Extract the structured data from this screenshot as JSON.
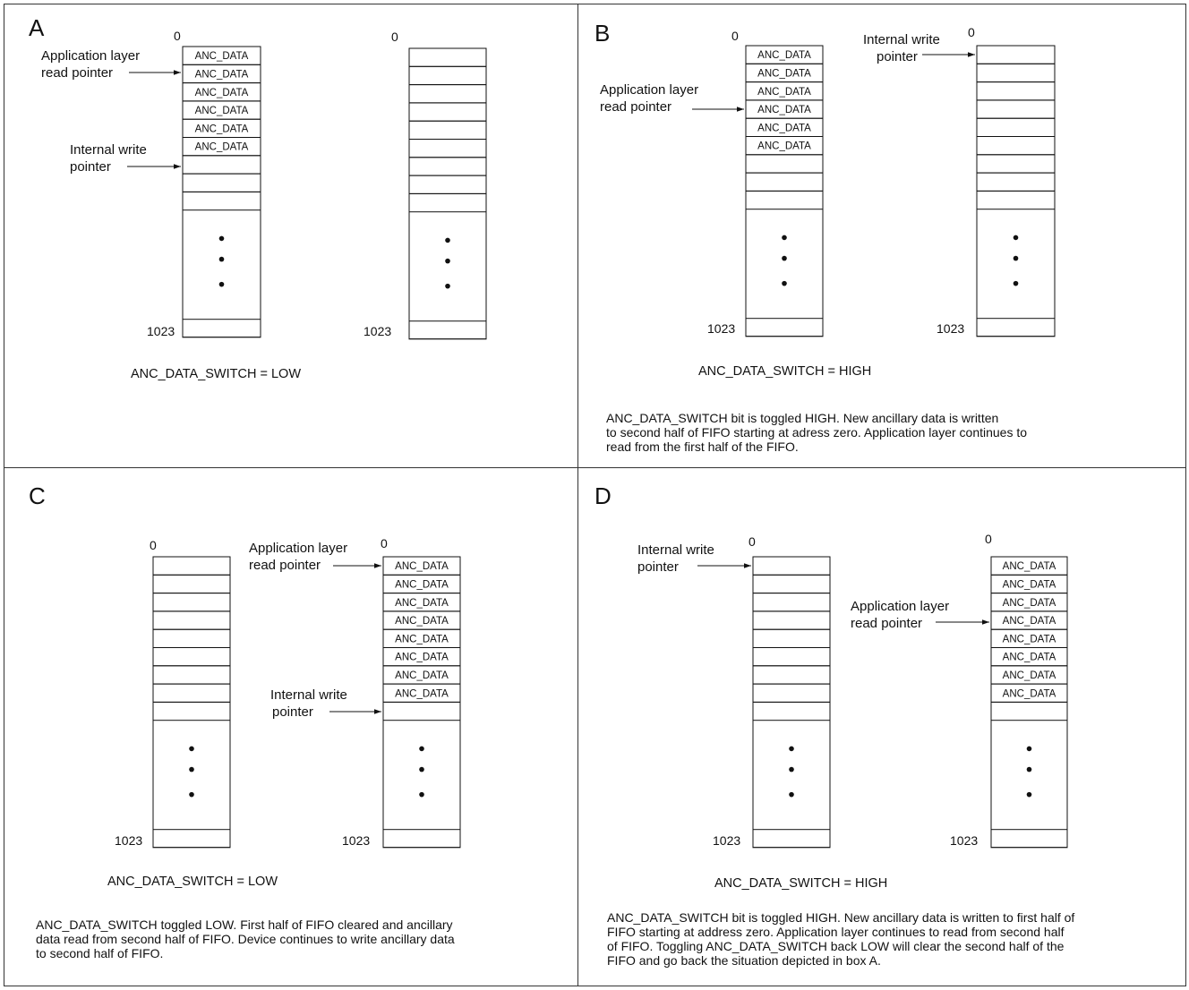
{
  "panels": {
    "A": {
      "letter": "A",
      "fifo_left": {
        "top_addr": "0",
        "bottom_addr": "1023",
        "filled_labels": [
          "ANC_DATA",
          "ANC_DATA",
          "ANC_DATA",
          "ANC_DATA",
          "ANC_DATA",
          "ANC_DATA"
        ]
      },
      "fifo_right": {
        "top_addr": "0",
        "bottom_addr": "1023",
        "filled_labels": []
      },
      "read_pointer": [
        "Application layer",
        "read pointer"
      ],
      "write_pointer": [
        "Internal write",
        "pointer"
      ],
      "switch_text": "ANC_DATA_SWITCH = LOW",
      "description": []
    },
    "B": {
      "letter": "B",
      "fifo_left": {
        "top_addr": "0",
        "bottom_addr": "1023",
        "filled_labels": [
          "ANC_DATA",
          "ANC_DATA",
          "ANC_DATA",
          "ANC_DATA",
          "ANC_DATA",
          "ANC_DATA"
        ]
      },
      "fifo_right": {
        "top_addr": "0",
        "bottom_addr": "1023",
        "filled_labels": []
      },
      "read_pointer": [
        "Application layer",
        "read pointer"
      ],
      "write_pointer": [
        "Internal write",
        "pointer"
      ],
      "switch_text": "ANC_DATA_SWITCH = HIGH",
      "description": [
        "ANC_DATA_SWITCH bit is toggled HIGH.  New ancillary data is written",
        "to second half of FIFO starting at adress zero.  Application layer continues to",
        "read from the first half of the FIFO."
      ]
    },
    "C": {
      "letter": "C",
      "fifo_left": {
        "top_addr": "0",
        "bottom_addr": "1023",
        "filled_labels": []
      },
      "fifo_right": {
        "top_addr": "0",
        "bottom_addr": "1023",
        "filled_labels": [
          "ANC_DATA",
          "ANC_DATA",
          "ANC_DATA",
          "ANC_DATA",
          "ANC_DATA",
          "ANC_DATA",
          "ANC_DATA",
          "ANC_DATA"
        ]
      },
      "read_pointer": [
        "Application layer",
        "read pointer"
      ],
      "write_pointer": [
        "Internal write",
        "pointer"
      ],
      "switch_text": "ANC_DATA_SWITCH = LOW",
      "description": [
        "ANC_DATA_SWITCH toggled LOW.  First half of FIFO cleared and ancillary",
        "data read from second half of FIFO.  Device continues to write ancillary data",
        "to second half of FIFO."
      ]
    },
    "D": {
      "letter": "D",
      "fifo_left": {
        "top_addr": "0",
        "bottom_addr": "1023",
        "filled_labels": []
      },
      "fifo_right": {
        "top_addr": "0",
        "bottom_addr": "1023",
        "filled_labels": [
          "ANC_DATA",
          "ANC_DATA",
          "ANC_DATA",
          "ANC_DATA",
          "ANC_DATA",
          "ANC_DATA",
          "ANC_DATA",
          "ANC_DATA"
        ]
      },
      "read_pointer": [
        "Application layer",
        "read pointer"
      ],
      "write_pointer": [
        "Internal write",
        "pointer"
      ],
      "switch_text": "ANC_DATA_SWITCH = HIGH",
      "description": [
        "ANC_DATA_SWITCH bit is toggled HIGH.  New ancillary data is written to first half of",
        "FIFO starting at address zero.  Application layer continues to read from second half",
        "of FIFO.  Toggling ANC_DATA_SWITCH back LOW will clear the second half of the",
        "FIFO and go back the situation depicted in box A."
      ]
    }
  }
}
